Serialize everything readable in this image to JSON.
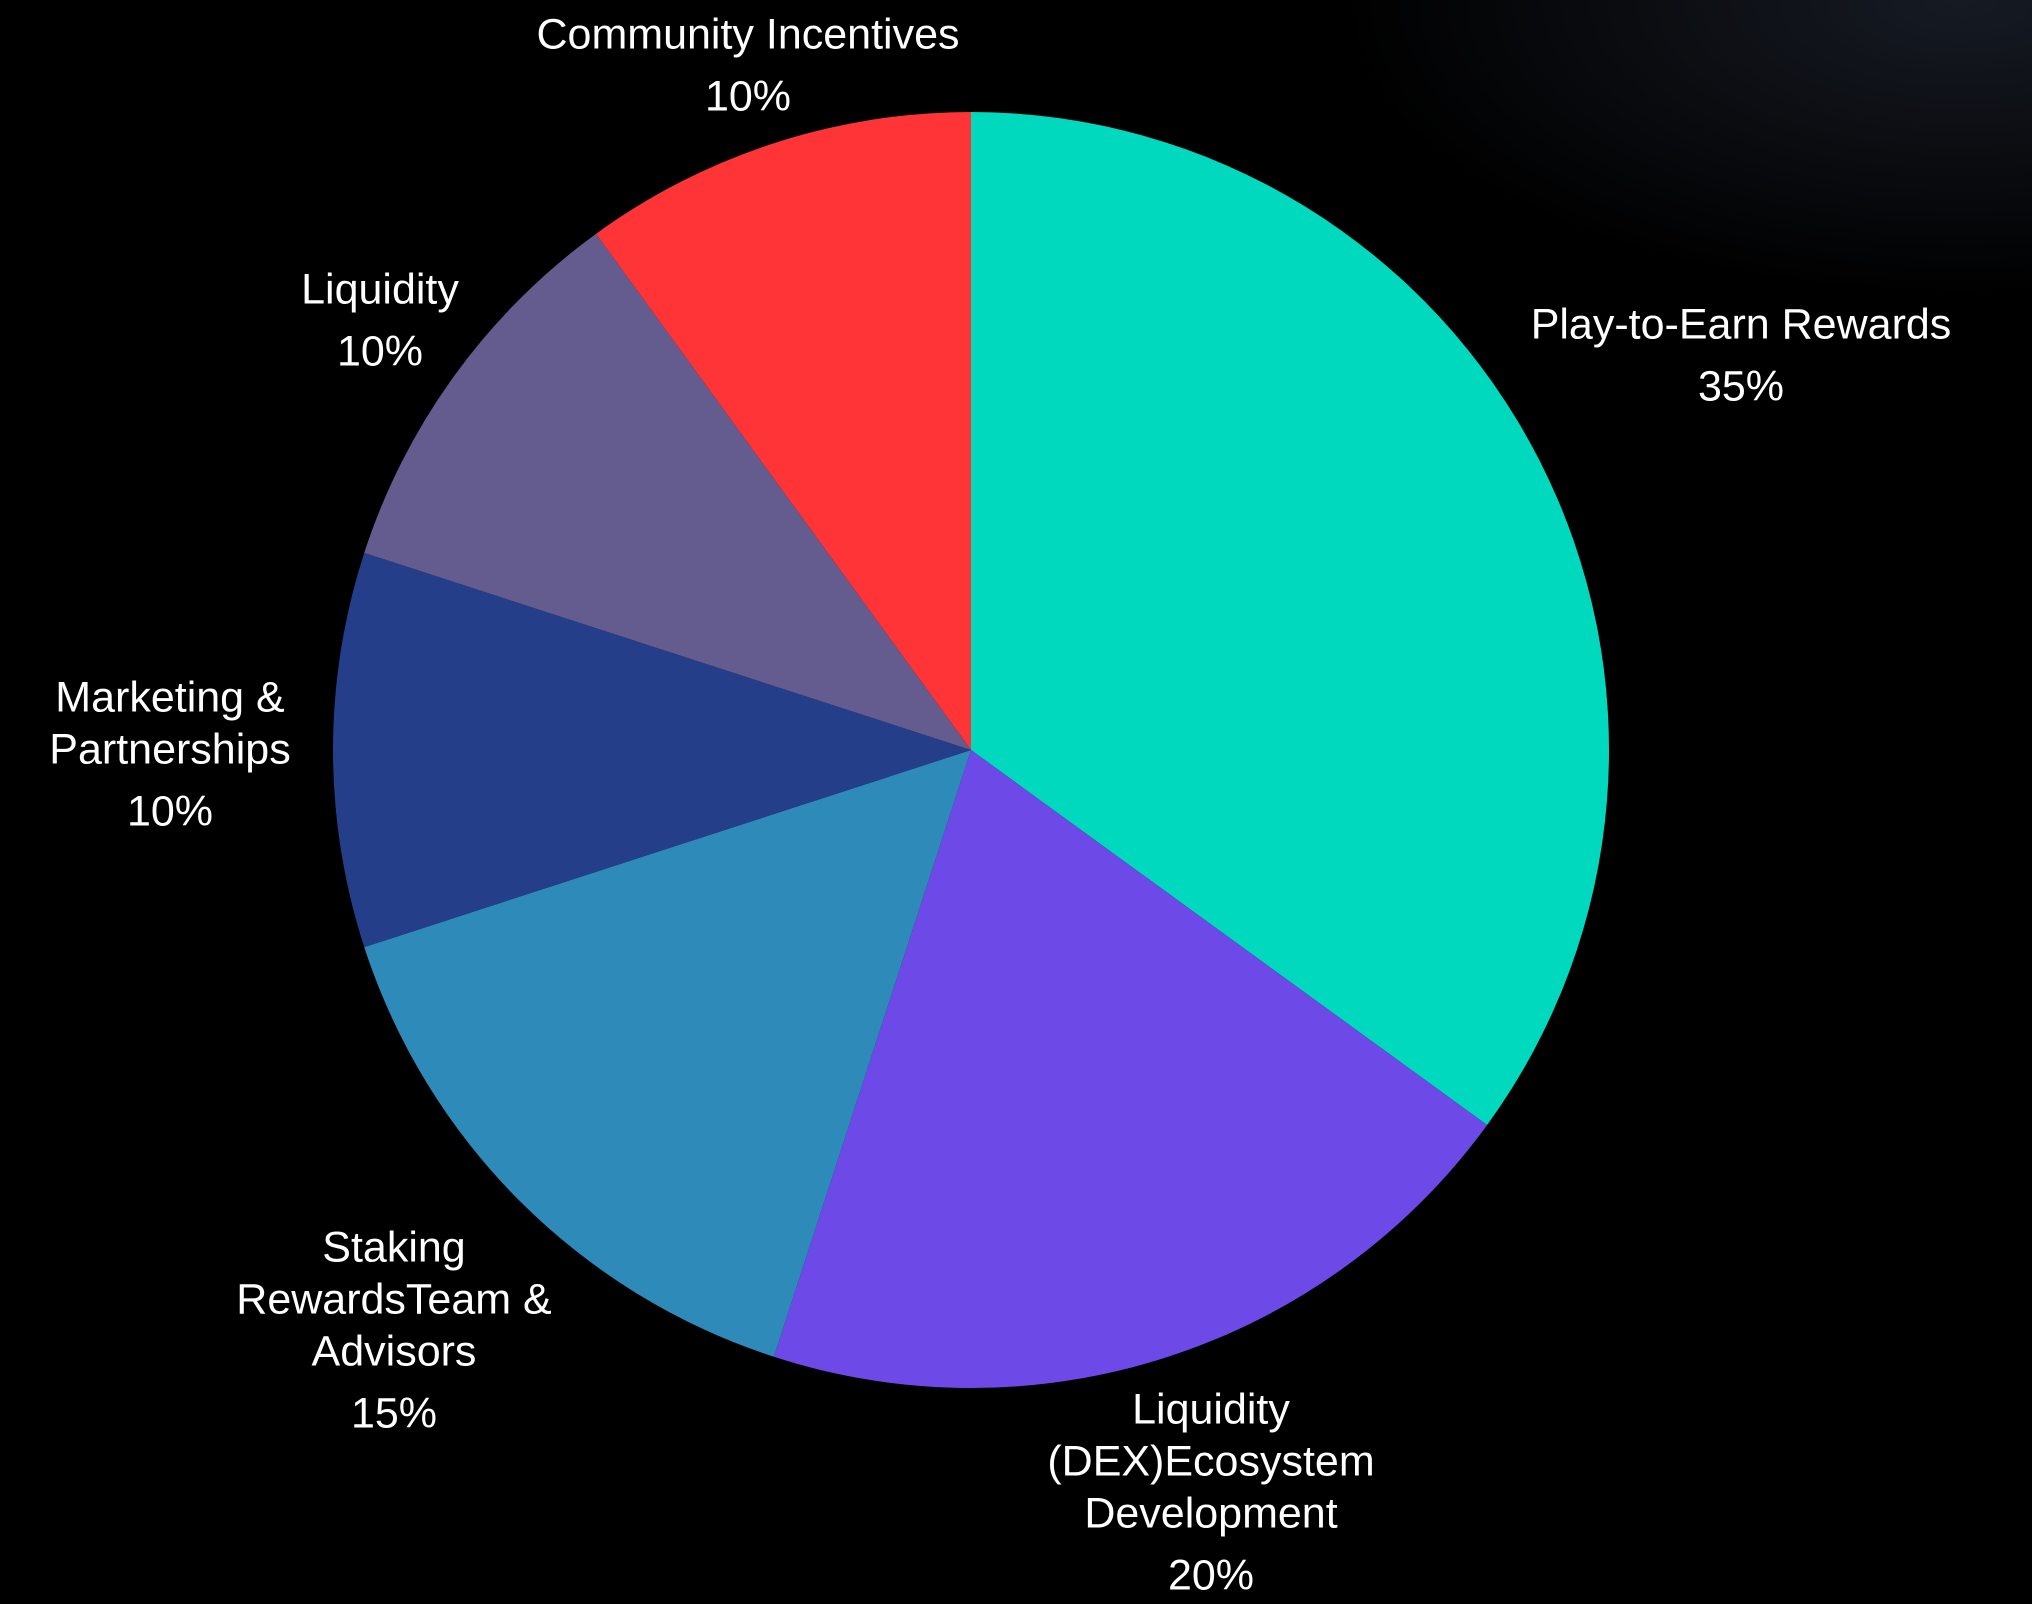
{
  "chart_data": {
    "type": "pie",
    "slices": [
      {
        "label_lines": [
          "Play-to-Earn Rewards"
        ],
        "value": 35,
        "percent_label": "35%",
        "color": "#00D9BE"
      },
      {
        "label_lines": [
          "Liquidity",
          "(DEX)Ecosystem",
          "Development"
        ],
        "value": 20,
        "percent_label": "20%",
        "color": "#6D4AE7"
      },
      {
        "label_lines": [
          "Staking",
          "RewardsTeam &",
          "Advisors"
        ],
        "value": 15,
        "percent_label": "15%",
        "color": "#2E8AB8"
      },
      {
        "label_lines": [
          "Marketing &",
          "Partnerships"
        ],
        "value": 10,
        "percent_label": "10%",
        "color": "#243E8A"
      },
      {
        "label_lines": [
          "Liquidity"
        ],
        "value": 10,
        "percent_label": "10%",
        "color": "#645B8F"
      },
      {
        "label_lines": [
          "Community Incentives"
        ],
        "value": 10,
        "percent_label": "10%",
        "color": "#FF3436"
      }
    ],
    "start_angle_deg": 0,
    "direction": "clockwise",
    "label_color": "#FFFFFF",
    "background": "#000000"
  }
}
